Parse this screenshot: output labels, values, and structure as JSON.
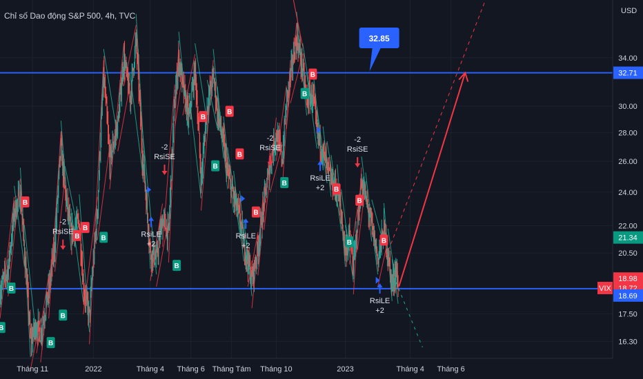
{
  "chart_data": {
    "type": "candlestick",
    "title": "Chỉ số Dao động S&P 500, 4h, TVC",
    "y_unit": "USD",
    "y_scale": "log",
    "ylim": [
      15.6,
      39.5
    ],
    "y_ticks": [
      "34.00",
      "32.71",
      "30.00",
      "28.00",
      "26.00",
      "24.00",
      "22.00",
      "21.34",
      "20.50",
      "18.98",
      "18.72",
      "18.69",
      "17.50",
      "16.30"
    ],
    "x_ticks": [
      {
        "label": "Tháng 11",
        "x": 0.8
      },
      {
        "label": "2022",
        "x": 2.3
      },
      {
        "label": "Tháng 4",
        "x": 3.7
      },
      {
        "label": "Tháng 6",
        "x": 4.7
      },
      {
        "label": "Tháng Tám",
        "x": 5.7
      },
      {
        "label": "Tháng 10",
        "x": 6.8
      },
      {
        "label": "2023",
        "x": 8.5
      },
      {
        "label": "Tháng 4",
        "x": 10.1
      },
      {
        "label": "Tháng 6",
        "x": 11.1
      }
    ],
    "xlim": [
      0,
      15.08
    ],
    "price_path": [
      [
        0.0,
        18.6
      ],
      [
        0.2,
        19.7
      ],
      [
        0.35,
        22.8
      ],
      [
        0.5,
        23.9
      ],
      [
        0.6,
        20.6
      ],
      [
        0.75,
        16.3
      ],
      [
        0.9,
        17.0
      ],
      [
        1.0,
        16.6
      ],
      [
        1.2,
        18.6
      ],
      [
        1.35,
        21.0
      ],
      [
        1.5,
        27.0
      ],
      [
        1.6,
        24.0
      ],
      [
        1.75,
        21.5
      ],
      [
        1.95,
        22.3
      ],
      [
        2.05,
        18.8
      ],
      [
        2.2,
        17.4
      ],
      [
        2.4,
        22.8
      ],
      [
        2.55,
        32.5
      ],
      [
        2.7,
        26.0
      ],
      [
        2.9,
        28.7
      ],
      [
        3.05,
        34.0
      ],
      [
        3.2,
        30.5
      ],
      [
        3.35,
        35.6
      ],
      [
        3.5,
        26.5
      ],
      [
        3.7,
        20.5
      ],
      [
        3.85,
        20.2
      ],
      [
        4.0,
        22.4
      ],
      [
        4.15,
        21.5
      ],
      [
        4.3,
        30.5
      ],
      [
        4.4,
        34.0
      ],
      [
        4.5,
        31.5
      ],
      [
        4.65,
        29.0
      ],
      [
        4.8,
        33.0
      ],
      [
        4.95,
        24.6
      ],
      [
        5.1,
        30.0
      ],
      [
        5.25,
        32.5
      ],
      [
        5.35,
        29.5
      ],
      [
        5.5,
        27.3
      ],
      [
        5.6,
        25.2
      ],
      [
        5.75,
        23.7
      ],
      [
        5.9,
        22.5
      ],
      [
        6.0,
        20.9
      ],
      [
        6.1,
        20.2
      ],
      [
        6.2,
        19.1
      ],
      [
        6.35,
        20.8
      ],
      [
        6.5,
        23.4
      ],
      [
        6.65,
        25.8
      ],
      [
        6.8,
        28.0
      ],
      [
        6.95,
        26.1
      ],
      [
        7.05,
        30.4
      ],
      [
        7.15,
        32.5
      ],
      [
        7.3,
        35.8
      ],
      [
        7.45,
        33.0
      ],
      [
        7.55,
        30.5
      ],
      [
        7.7,
        30.9
      ],
      [
        7.8,
        28.0
      ],
      [
        7.95,
        26.6
      ],
      [
        8.05,
        25.6
      ],
      [
        8.15,
        24.7
      ],
      [
        8.3,
        24.1
      ],
      [
        8.4,
        22.6
      ],
      [
        8.5,
        20.6
      ],
      [
        8.6,
        21.4
      ],
      [
        8.7,
        19.8
      ],
      [
        8.8,
        22.2
      ],
      [
        8.9,
        24.6
      ],
      [
        9.0,
        23.6
      ],
      [
        9.15,
        22.0
      ],
      [
        9.3,
        20.2
      ],
      [
        9.45,
        21.8
      ],
      [
        9.55,
        20.4
      ],
      [
        9.65,
        18.85
      ],
      [
        9.75,
        19.7
      ],
      [
        9.8,
        18.72
      ]
    ],
    "horizontal_levels": [
      {
        "value": 32.71,
        "color": "#2962ff"
      },
      {
        "value": 18.69,
        "color": "#2962ff"
      }
    ],
    "projection": {
      "start": {
        "x": 9.82,
        "y": 18.8
      },
      "end": {
        "x": 11.45,
        "y": 32.71
      },
      "color": "#f23645"
    },
    "callout": {
      "label": "32.85",
      "value": 32.85,
      "x": 9.3
    },
    "price_tags": [
      {
        "label": "32.71",
        "value": 32.71,
        "color": "#2962ff"
      },
      {
        "label": "21.34",
        "value": 21.34,
        "color": "#089981"
      },
      {
        "label": "18.98",
        "value": 18.98,
        "color": "#f23645"
      },
      {
        "label": "18.72",
        "value": 18.72,
        "color": "#f23645",
        "prefix": "VIX"
      },
      {
        "label": "18.69",
        "value": 18.69,
        "color": "#2962ff"
      }
    ],
    "signals": [
      {
        "kind": "short",
        "lines": [
          "-2",
          "RsiSE"
        ],
        "x": 1.55,
        "y": 21.0
      },
      {
        "kind": "long",
        "lines": [
          "RsiLE",
          "+2"
        ],
        "x": 3.72,
        "y": 22.4
      },
      {
        "kind": "short",
        "lines": [
          "-2",
          "RsiSE"
        ],
        "x": 4.05,
        "y": 25.5
      },
      {
        "kind": "long",
        "lines": [
          "RsiLE",
          "+2"
        ],
        "x": 6.05,
        "y": 22.3
      },
      {
        "kind": "short",
        "lines": [
          "-2",
          "RsiSE"
        ],
        "x": 6.65,
        "y": 26.1
      },
      {
        "kind": "long",
        "lines": [
          "RsiLE",
          "+2"
        ],
        "x": 7.88,
        "y": 25.9
      },
      {
        "kind": "short",
        "lines": [
          "-2",
          "RsiSE"
        ],
        "x": 8.8,
        "y": 26.0
      },
      {
        "kind": "long",
        "lines": [
          "RsiLE",
          "+2"
        ],
        "x": 9.35,
        "y": 18.85
      }
    ],
    "badges": [
      {
        "letter": "B",
        "x": 0.03,
        "y": 16.9,
        "color": "#089981"
      },
      {
        "letter": "B",
        "x": 0.28,
        "y": 18.72,
        "color": "#089981"
      },
      {
        "letter": "B",
        "x": 0.62,
        "y": 23.4,
        "color": "#f23645"
      },
      {
        "letter": "B",
        "x": 1.25,
        "y": 16.25,
        "color": "#089981"
      },
      {
        "letter": "B",
        "x": 1.55,
        "y": 17.45,
        "color": "#089981"
      },
      {
        "letter": "B",
        "x": 1.9,
        "y": 21.45,
        "color": "#f23645"
      },
      {
        "letter": "B",
        "x": 2.1,
        "y": 21.9,
        "color": "#f23645"
      },
      {
        "letter": "B",
        "x": 2.55,
        "y": 21.35,
        "color": "#089981"
      },
      {
        "letter": "B",
        "x": 4.35,
        "y": 19.85,
        "color": "#089981"
      },
      {
        "letter": "B",
        "x": 5.0,
        "y": 29.2,
        "color": "#f23645"
      },
      {
        "letter": "B",
        "x": 5.3,
        "y": 25.7,
        "color": "#089981"
      },
      {
        "letter": "B",
        "x": 5.65,
        "y": 29.6,
        "color": "#f23645"
      },
      {
        "letter": "B",
        "x": 5.9,
        "y": 26.5,
        "color": "#f23645"
      },
      {
        "letter": "B",
        "x": 6.3,
        "y": 22.8,
        "color": "#f23645"
      },
      {
        "letter": "B",
        "x": 7.0,
        "y": 24.6,
        "color": "#089981"
      },
      {
        "letter": "B",
        "x": 7.5,
        "y": 31.0,
        "color": "#089981"
      },
      {
        "letter": "B",
        "x": 7.7,
        "y": 32.6,
        "color": "#f23645"
      },
      {
        "letter": "B",
        "x": 8.28,
        "y": 24.2,
        "color": "#f23645"
      },
      {
        "letter": "B",
        "x": 8.6,
        "y": 21.1,
        "color": "#089981"
      },
      {
        "letter": "B",
        "x": 8.85,
        "y": 23.5,
        "color": "#f23645"
      },
      {
        "letter": "B",
        "x": 9.45,
        "y": 21.2,
        "color": "#f23645"
      }
    ],
    "blue_markers": [
      {
        "x": 3.67,
        "y": 24.15
      },
      {
        "x": 5.98,
        "y": 23.6
      },
      {
        "x": 7.85,
        "y": 28.2
      },
      {
        "x": 9.3,
        "y": 19.1
      }
    ],
    "future_path": [
      [
        9.75,
        19.0
      ],
      [
        10.4,
        16.05
      ]
    ]
  }
}
